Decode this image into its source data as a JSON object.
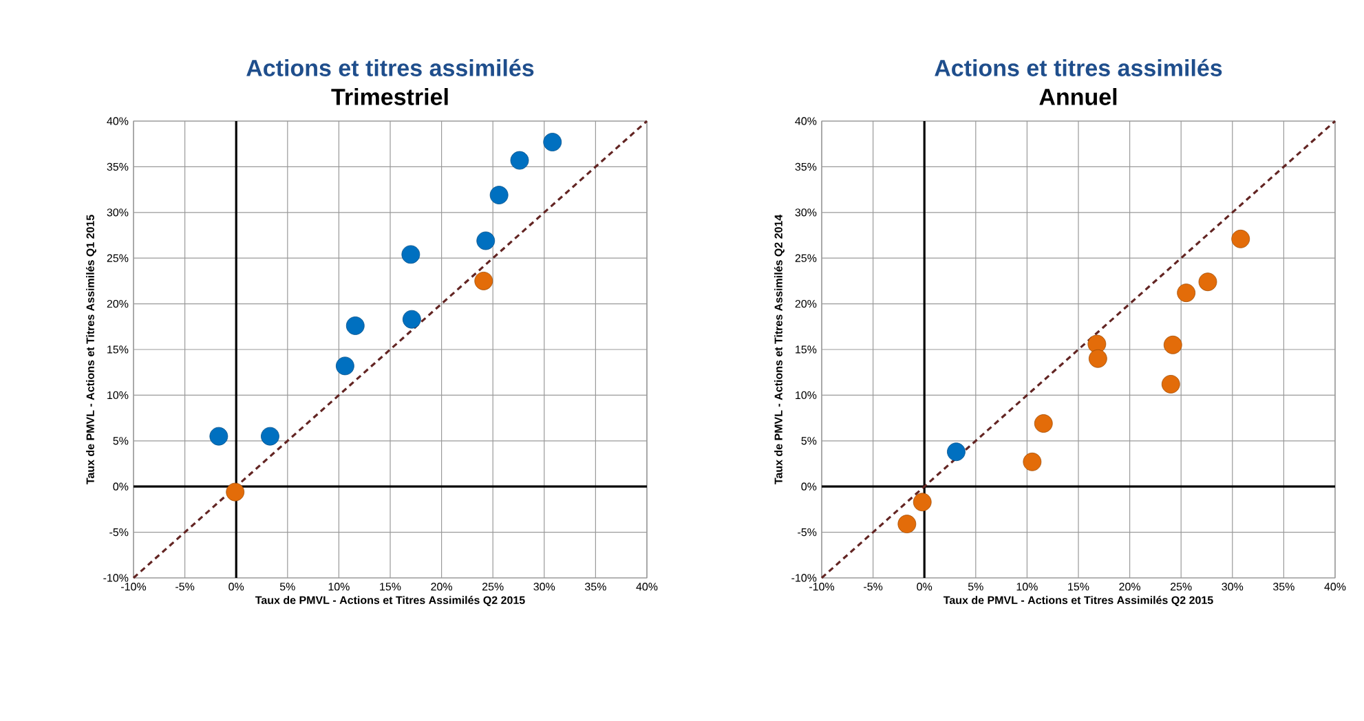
{
  "chart_data": [
    {
      "type": "scatter",
      "title": "Actions et titres assimilés",
      "subtitle": "Trimestriel",
      "xlabel": "Taux de PMVL -  Actions et Titres Assimilés Q2 2015",
      "ylabel": "Taux de PMVL -  Actions et Titres Assimilés Q1 2015",
      "xlim": [
        -10,
        40
      ],
      "ylim": [
        -10,
        40
      ],
      "xticks": [
        {
          "value": -10,
          "label": "-10%"
        },
        {
          "value": -5,
          "label": "-5%"
        },
        {
          "value": 0,
          "label": "0%"
        },
        {
          "value": 5,
          "label": "5%"
        },
        {
          "value": 10,
          "label": "10%"
        },
        {
          "value": 15,
          "label": "15%"
        },
        {
          "value": 20,
          "label": "20%"
        },
        {
          "value": 25,
          "label": "25%"
        },
        {
          "value": 30,
          "label": "30%"
        },
        {
          "value": 35,
          "label": "35%"
        },
        {
          "value": 40,
          "label": "40%"
        }
      ],
      "yticks": [
        {
          "value": -10,
          "label": "-10%"
        },
        {
          "value": -5,
          "label": "-5%"
        },
        {
          "value": 0,
          "label": "0%"
        },
        {
          "value": 5,
          "label": "5%"
        },
        {
          "value": 10,
          "label": "10%"
        },
        {
          "value": 15,
          "label": "15%"
        },
        {
          "value": 20,
          "label": "20%"
        },
        {
          "value": 25,
          "label": "25%"
        },
        {
          "value": 30,
          "label": "30%"
        },
        {
          "value": 35,
          "label": "35%"
        },
        {
          "value": 40,
          "label": "40%"
        }
      ],
      "grid": true,
      "marker": "circle",
      "series": [
        {
          "type": "line",
          "color": "#632523",
          "line_style": "dashed",
          "marker": "none",
          "x": [
            -10,
            40
          ],
          "values": [
            -10,
            40
          ]
        },
        {
          "color": "#0070c0",
          "x": [
            -1.7,
            3.3,
            10.6,
            11.6,
            17.0,
            17.1,
            24.3,
            25.6,
            27.6,
            30.8
          ],
          "values": [
            5.5,
            5.5,
            13.2,
            17.6,
            25.4,
            18.3,
            26.9,
            31.9,
            35.7,
            37.7
          ]
        },
        {
          "color": "#e36c09",
          "x": [
            -0.1,
            24.1
          ],
          "values": [
            -0.6,
            22.5
          ]
        }
      ]
    },
    {
      "type": "scatter",
      "title": "Actions et titres assimilés",
      "subtitle": "Annuel",
      "xlabel": "Taux de PMVL -  Actions et Titres Assimilés Q2 2015",
      "ylabel": "Taux de PMVL -  Actions et Titres Assimilés Q2 2014",
      "xlim": [
        -10,
        40
      ],
      "ylim": [
        -10,
        40
      ],
      "xticks": [
        {
          "value": -10,
          "label": "-10%"
        },
        {
          "value": -5,
          "label": "-5%"
        },
        {
          "value": 0,
          "label": "0%"
        },
        {
          "value": 5,
          "label": "5%"
        },
        {
          "value": 10,
          "label": "10%"
        },
        {
          "value": 15,
          "label": "15%"
        },
        {
          "value": 20,
          "label": "20%"
        },
        {
          "value": 25,
          "label": "25%"
        },
        {
          "value": 30,
          "label": "30%"
        },
        {
          "value": 35,
          "label": "35%"
        },
        {
          "value": 40,
          "label": "40%"
        }
      ],
      "yticks": [
        {
          "value": -10,
          "label": "-10%"
        },
        {
          "value": -5,
          "label": "-5%"
        },
        {
          "value": 0,
          "label": "0%"
        },
        {
          "value": 5,
          "label": "5%"
        },
        {
          "value": 10,
          "label": "10%"
        },
        {
          "value": 15,
          "label": "15%"
        },
        {
          "value": 20,
          "label": "20%"
        },
        {
          "value": 25,
          "label": "25%"
        },
        {
          "value": 30,
          "label": "30%"
        },
        {
          "value": 35,
          "label": "35%"
        },
        {
          "value": 40,
          "label": "40%"
        }
      ],
      "grid": true,
      "marker": "circle",
      "series": [
        {
          "type": "line",
          "color": "#632523",
          "line_style": "dashed",
          "marker": "none",
          "x": [
            -10,
            40
          ],
          "values": [
            -10,
            40
          ]
        },
        {
          "color": "#0070c0",
          "x": [
            3.1
          ],
          "values": [
            3.8
          ]
        },
        {
          "color": "#e36c09",
          "x": [
            -1.7,
            -0.2,
            10.5,
            11.6,
            16.8,
            16.9,
            24.0,
            24.2,
            25.5,
            27.6,
            30.8
          ],
          "values": [
            -4.1,
            -1.7,
            2.7,
            6.9,
            15.6,
            14.0,
            11.2,
            15.5,
            21.2,
            22.4,
            27.1
          ]
        }
      ]
    }
  ]
}
